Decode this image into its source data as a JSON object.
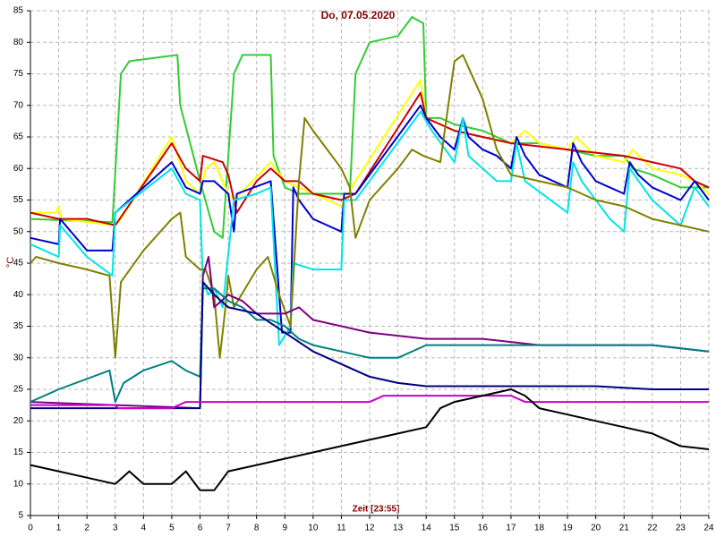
{
  "chart_data": {
    "type": "line",
    "title": "Do, 07.05.2020",
    "y_label": "°C",
    "x_label": "Zeit [23:55]",
    "xlim": [
      0,
      24
    ],
    "ylim": [
      5,
      85
    ],
    "xticks": [
      0,
      1,
      2,
      3,
      4,
      5,
      6,
      7,
      8,
      9,
      10,
      11,
      12,
      13,
      14,
      15,
      16,
      17,
      18,
      19,
      20,
      21,
      22,
      23,
      24
    ],
    "yticks": [
      5,
      10,
      15,
      20,
      25,
      30,
      35,
      40,
      45,
      50,
      55,
      60,
      65,
      70,
      75,
      80,
      85
    ],
    "grid": true,
    "series": [
      {
        "color": "#33cc33",
        "x": [
          0,
          2.9,
          3.2,
          3.5,
          5.2,
          5.3,
          6,
          6.5,
          6.8,
          7.2,
          7.5,
          8.5,
          8.6,
          9,
          9.5,
          11,
          11.3,
          11.5,
          12,
          13,
          13.5,
          13.9,
          14,
          14.5,
          15,
          16,
          17,
          18,
          19,
          20,
          21,
          21.3,
          22,
          23,
          23.5,
          24
        ],
        "values": [
          52,
          51.5,
          75,
          77,
          78,
          70,
          58,
          50,
          49,
          75,
          78,
          78,
          62,
          57,
          56,
          56,
          56,
          75,
          80,
          81,
          84,
          83,
          68,
          68,
          67,
          66,
          64,
          64,
          63,
          62,
          62,
          60,
          59,
          57,
          57,
          57
        ]
      },
      {
        "color": "#ffff00",
        "x": [
          0,
          0.9,
          1,
          1.1,
          3,
          3.2,
          5,
          5.5,
          6,
          6.2,
          6.5,
          7,
          7.2,
          8.5,
          9,
          9.5,
          10.5,
          11,
          11.5,
          13.8,
          14,
          15,
          16,
          17,
          17.5,
          18,
          19,
          19.3,
          20,
          21,
          21.3,
          22,
          23,
          23.5,
          24
        ],
        "values": [
          53,
          53,
          54,
          52,
          51,
          52,
          65,
          58,
          56,
          60,
          61,
          56,
          55,
          61,
          58,
          57,
          55,
          54,
          58,
          74,
          68,
          66,
          65,
          64,
          66,
          64,
          63,
          65,
          62,
          61,
          63,
          60,
          59,
          58,
          56
        ]
      },
      {
        "color": "#cc0000",
        "x": [
          0,
          1,
          2,
          3,
          5,
          5.5,
          6,
          6.1,
          6.8,
          7,
          7.3,
          8,
          8.5,
          9,
          9.5,
          10,
          11,
          11.5,
          13.8,
          14,
          15,
          17,
          19,
          21,
          23,
          23.5,
          24
        ],
        "values": [
          53,
          52,
          52,
          51,
          64,
          60,
          58,
          62,
          61,
          59,
          53,
          58,
          60,
          58,
          58,
          56,
          55,
          56,
          72,
          68,
          66,
          64,
          63,
          62,
          60,
          58,
          57
        ]
      },
      {
        "color": "#0000cc",
        "x": [
          0,
          1,
          1.05,
          2,
          2.9,
          3,
          5,
          5.5,
          6,
          6.1,
          6.5,
          7,
          7.2,
          7.3,
          8.5,
          8.9,
          9.2,
          9.3,
          9.5,
          10,
          11,
          11.1,
          11.5,
          13.8,
          14,
          14.5,
          15,
          15.3,
          15.5,
          16,
          16.5,
          17,
          17.2,
          17.5,
          18,
          19,
          19.2,
          19.5,
          20,
          21,
          21.2,
          21.5,
          22,
          23,
          23.5,
          24
        ],
        "values": [
          49,
          48,
          52,
          47,
          47,
          53,
          61,
          57,
          56,
          58,
          58,
          56,
          50,
          56,
          58,
          34,
          34,
          57,
          55,
          52,
          50,
          56,
          56,
          70,
          68,
          65,
          63,
          68,
          65,
          63,
          62,
          60,
          65,
          62,
          59,
          57,
          64,
          61,
          58,
          56,
          61,
          59,
          57,
          55,
          58,
          55
        ]
      },
      {
        "color": "#00e5e5",
        "x": [
          0,
          1,
          1.05,
          2,
          2.9,
          3,
          5,
          5.5,
          6,
          6.1,
          6.3,
          6.5,
          6.8,
          7.2,
          8,
          8.5,
          8.8,
          9.2,
          9.3,
          10,
          11,
          11.1,
          11.5,
          13.8,
          14.2,
          15,
          15.3,
          15.5,
          16.5,
          17,
          17.2,
          17.5,
          19,
          19.2,
          19.5,
          20.5,
          21,
          21.2,
          22,
          23,
          23.5,
          24
        ],
        "values": [
          48,
          46,
          51,
          46,
          43,
          53,
          60,
          56,
          55,
          42,
          40,
          41,
          38,
          55,
          56,
          57,
          32,
          35,
          45,
          44,
          44,
          55,
          55,
          69,
          66,
          61,
          68,
          62,
          58,
          58,
          64,
          58,
          53,
          61,
          58,
          52,
          50,
          60,
          55,
          51,
          57,
          54
        ]
      },
      {
        "color": "#808000",
        "x": [
          0,
          0.2,
          1,
          2,
          2.8,
          3,
          3.2,
          4,
          5,
          5.3,
          5.5,
          6,
          6.2,
          6.5,
          6.7,
          6.9,
          7,
          7.2,
          8,
          8.4,
          8.8,
          9.2,
          9.5,
          9.7,
          10,
          11,
          11.3,
          11.5,
          12,
          13,
          13.5,
          13.9,
          14.5,
          15,
          15.3,
          16,
          16.5,
          17,
          18,
          19,
          20,
          21,
          22,
          23,
          24
        ],
        "values": [
          45,
          46,
          45,
          44,
          43,
          30,
          42,
          47,
          52,
          53,
          46,
          44,
          44,
          40,
          30,
          38,
          43,
          38,
          44,
          46,
          40,
          35,
          58,
          68,
          66,
          60,
          57,
          49,
          55,
          60,
          63,
          62,
          61,
          77,
          78,
          71,
          63,
          59,
          58,
          57,
          55,
          54,
          52,
          51,
          50
        ]
      },
      {
        "color": "#800080",
        "x": [
          0,
          6,
          6.1,
          6.3,
          6.5,
          7,
          7.5,
          8,
          8.5,
          9,
          9.5,
          10,
          12,
          14,
          16,
          18,
          20,
          22,
          24
        ],
        "values": [
          23,
          22,
          43,
          46,
          38,
          40,
          39,
          37,
          37,
          37,
          38,
          36,
          34,
          33,
          33,
          32,
          32,
          32,
          31
        ]
      },
      {
        "color": "#008080",
        "x": [
          0,
          1,
          2.8,
          3,
          3.3,
          4,
          5,
          5.5,
          6,
          6.1,
          6.5,
          7,
          7.5,
          8,
          8.5,
          9,
          9.5,
          10,
          11,
          12,
          13,
          14,
          16,
          18,
          20,
          22,
          24
        ],
        "values": [
          23,
          25,
          28,
          23,
          26,
          28,
          29.5,
          28,
          27,
          41,
          41,
          39,
          38,
          36,
          36,
          35,
          33,
          32,
          31,
          30,
          30,
          32,
          32,
          32,
          32,
          32,
          31
        ]
      },
      {
        "color": "#000080",
        "x": [
          0,
          3,
          6,
          6.1,
          6.5,
          7,
          8,
          9,
          10,
          11,
          12,
          13,
          14,
          16,
          18,
          20,
          22,
          24
        ],
        "values": [
          22,
          22,
          22,
          42,
          40,
          38,
          37,
          34,
          31,
          29,
          27,
          26,
          25.5,
          25.5,
          25.5,
          25.5,
          25,
          25
        ]
      },
      {
        "color": "#cc00cc",
        "x": [
          0,
          3,
          3.1,
          5,
          5.5,
          12,
          12.5,
          17,
          17.5,
          24
        ],
        "values": [
          22.5,
          22.5,
          22,
          22,
          23,
          23,
          24,
          24,
          23,
          23
        ]
      },
      {
        "color": "#000000",
        "x": [
          0,
          1,
          2,
          3,
          3.5,
          4,
          5,
          5.5,
          6,
          6.5,
          7,
          8,
          9,
          10,
          11,
          12,
          13,
          14,
          14.5,
          15,
          16,
          17,
          17.5,
          18,
          19,
          20,
          21,
          22,
          23,
          24
        ],
        "values": [
          13,
          12,
          11,
          10,
          12,
          10,
          10,
          12,
          9,
          9,
          12,
          13,
          14,
          15,
          16,
          17,
          18,
          19,
          22,
          23,
          24,
          25,
          24,
          22,
          21,
          20,
          19,
          18,
          16,
          15.5
        ]
      }
    ]
  }
}
